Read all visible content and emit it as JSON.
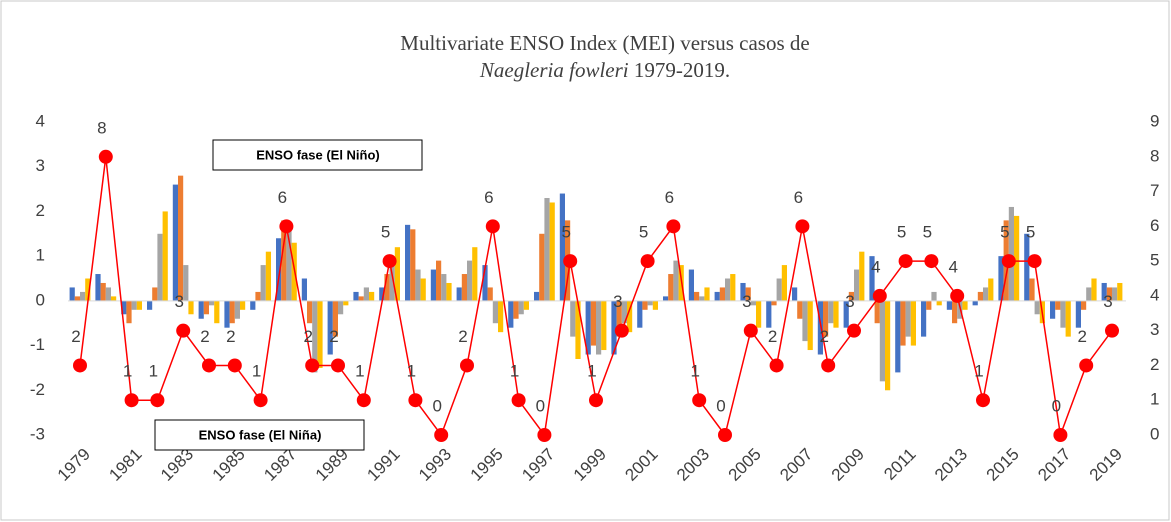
{
  "chart_data": {
    "type": "bar",
    "title": {
      "line1": "Multivariate ENSO Index (MEI) versus casos de",
      "species": "Naegleria fowleri",
      "years": "1979-2019."
    },
    "annotations": [
      "ENSO fase (El Niño)",
      "ENSO fase (El Niña)"
    ],
    "categories": [
      "1979",
      null,
      "1981",
      null,
      "1983",
      null,
      "1985",
      null,
      "1987",
      null,
      "1989",
      null,
      "1991",
      null,
      "1993",
      null,
      "1995",
      null,
      "1997",
      null,
      "1999",
      null,
      "2001",
      null,
      "2003",
      null,
      "2005",
      null,
      "2007",
      null,
      "2009",
      null,
      "2011",
      null,
      "2013",
      null,
      "2015",
      null,
      "2017",
      null,
      "2019"
    ],
    "ylim": [
      -3,
      4
    ],
    "yticks": [
      -3,
      -2,
      -1,
      0,
      1,
      2,
      3,
      4
    ],
    "y2lim": [
      0,
      9
    ],
    "y2ticks": [
      0,
      1,
      2,
      3,
      4,
      5,
      6,
      7,
      8,
      9
    ],
    "series": [
      {
        "type": "bar",
        "color": "#4472c4",
        "values": [
          0.3,
          0.6,
          -0.3,
          -0.2,
          2.6,
          -0.4,
          -0.6,
          -0.2,
          1.4,
          0.5,
          -1.2,
          0.2,
          0.3,
          1.7,
          0.7,
          0.3,
          0.8,
          -0.6,
          0.2,
          2.4,
          -1.2,
          -1.2,
          -0.6,
          0.1,
          0.7,
          0.2,
          0.4,
          -0.6,
          0.3,
          -1.2,
          -0.6,
          1.0,
          -1.6,
          -0.8,
          -0.2,
          -0.1,
          1.0,
          1.5,
          -0.4,
          -0.6,
          0.4
        ]
      },
      {
        "type": "bar",
        "color": "#ed7d31",
        "values": [
          0.1,
          0.4,
          -0.5,
          0.3,
          2.8,
          -0.3,
          -0.5,
          0.2,
          1.8,
          -0.5,
          -0.8,
          0.1,
          0.6,
          1.6,
          0.9,
          0.6,
          0.3,
          -0.4,
          1.5,
          1.8,
          -1.0,
          -0.8,
          -0.2,
          0.6,
          0.2,
          0.3,
          0.3,
          -0.1,
          -0.4,
          -0.8,
          0.2,
          -0.5,
          -1.0,
          -0.2,
          -0.5,
          0.2,
          1.8,
          0.5,
          -0.2,
          -0.2,
          0.3
        ]
      },
      {
        "type": "bar",
        "color": "#a5a5a5",
        "values": [
          0.2,
          0.3,
          -0.2,
          1.5,
          0.8,
          -0.1,
          -0.4,
          0.8,
          1.7,
          -1.6,
          -0.3,
          0.3,
          0.9,
          0.7,
          0.6,
          0.9,
          -0.5,
          -0.3,
          2.3,
          -0.8,
          -1.2,
          -0.5,
          -0.1,
          0.9,
          0.1,
          0.5,
          -0.1,
          0.5,
          -0.9,
          -0.5,
          0.7,
          -1.8,
          -0.8,
          0.2,
          -0.4,
          0.3,
          2.1,
          -0.3,
          -0.6,
          0.3,
          0.3
        ]
      },
      {
        "type": "bar",
        "color": "#ffc000",
        "values": [
          0.5,
          0.1,
          -0.2,
          2.0,
          -0.3,
          -0.5,
          -0.2,
          1.1,
          1.3,
          -1.5,
          -0.1,
          0.2,
          1.2,
          0.5,
          0.4,
          1.2,
          -0.7,
          -0.2,
          2.2,
          -1.3,
          -1.1,
          -0.7,
          -0.2,
          0.8,
          0.3,
          0.6,
          -0.6,
          0.8,
          -1.1,
          -0.6,
          1.1,
          -2.0,
          -1.0,
          -0.1,
          -0.2,
          0.5,
          1.9,
          -0.5,
          -0.8,
          0.5,
          0.4
        ]
      },
      {
        "type": "line",
        "axis": "y2",
        "color": "#ff0000",
        "values": [
          2,
          8,
          1,
          1,
          3,
          2,
          2,
          1,
          6,
          2,
          2,
          1,
          5,
          1,
          0,
          2,
          6,
          1,
          0,
          5,
          1,
          3,
          5,
          6,
          1,
          0,
          3,
          2,
          6,
          2,
          3,
          4,
          5,
          5,
          4,
          1,
          5,
          5,
          0,
          2,
          3
        ]
      }
    ]
  }
}
